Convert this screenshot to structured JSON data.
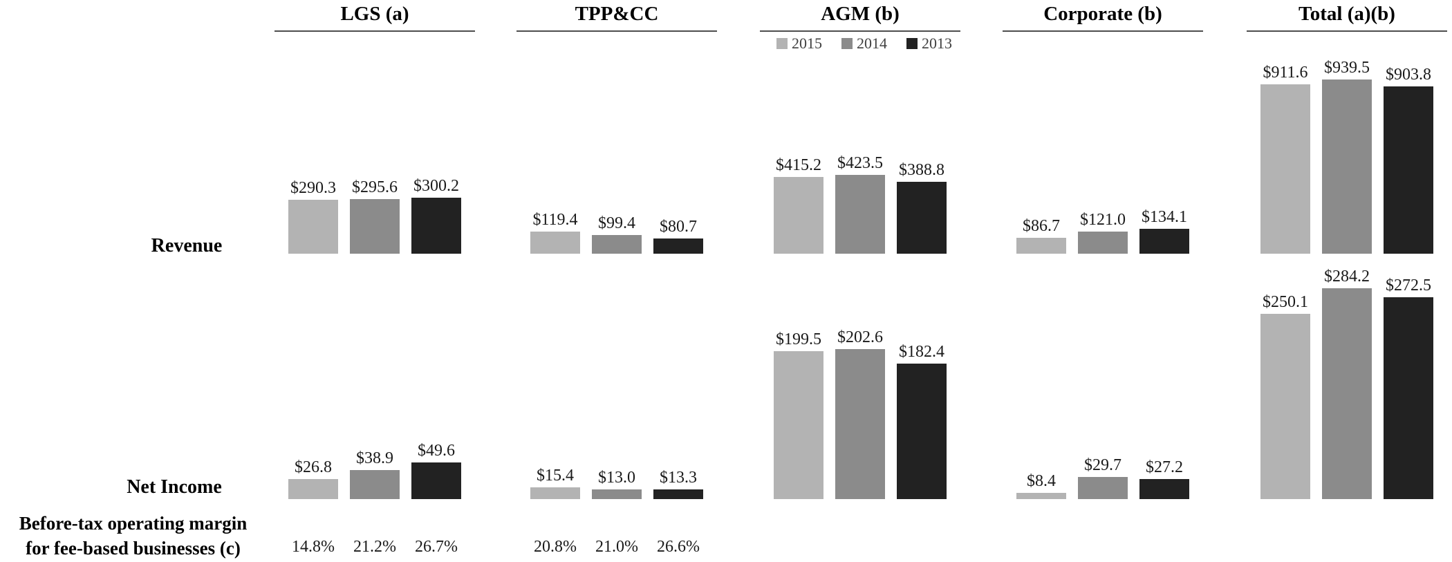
{
  "chart_data": {
    "type": "bar",
    "grid": false,
    "legend_position": "top-center-under-AGM-header",
    "years": [
      "2015",
      "2014",
      "2013"
    ],
    "year_colors": [
      "#b3b3b3",
      "#8b8b8b",
      "#222222"
    ],
    "legend_text_color": "#404040",
    "value_text_color": "#1a1a1a",
    "underline_color": "#4d4d4d",
    "segments": [
      "LGS (a)",
      "TPP&CC",
      "AGM (b)",
      "Corporate (b)",
      "Total (a)(b)"
    ],
    "rows": [
      {
        "label": "Revenue",
        "values": [
          [
            "$290.3",
            "$295.6",
            "$300.2"
          ],
          [
            "$119.4",
            "$99.4",
            "$80.7"
          ],
          [
            "$415.2",
            "$423.5",
            "$388.8"
          ],
          [
            "$86.7",
            "$121.0",
            "$134.1"
          ],
          [
            "$911.6",
            "$939.5",
            "$903.8"
          ]
        ]
      },
      {
        "label": "Net Income",
        "values": [
          [
            "$26.8",
            "$38.9",
            "$49.6"
          ],
          [
            "$15.4",
            "$13.0",
            "$13.3"
          ],
          [
            "$199.5",
            "$202.6",
            "$182.4"
          ],
          [
            "$8.4",
            "$29.7",
            "$27.2"
          ],
          [
            "$250.1",
            "$284.2",
            "$272.5"
          ]
        ]
      }
    ],
    "margin_row": {
      "label_line1": "Before-tax operating margin",
      "label_line2": "for fee-based businesses (c)",
      "values": [
        [
          "14.8%",
          "21.2%",
          "26.7%"
        ],
        [
          "20.8%",
          "21.0%",
          "26.6%"
        ],
        null,
        null,
        null
      ]
    }
  }
}
